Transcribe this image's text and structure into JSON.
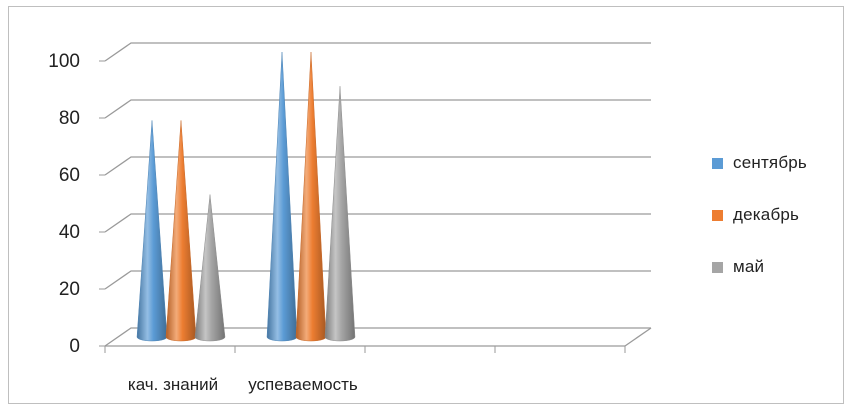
{
  "chart_data": {
    "type": "bar",
    "subtype": "3d-cone",
    "title": "",
    "xlabel": "",
    "ylabel": "",
    "ylim": [
      0,
      100
    ],
    "yticks": [
      0,
      20,
      40,
      60,
      80,
      100
    ],
    "grid": true,
    "legend_position": "right",
    "categories": [
      "кач. знаний",
      "успеваемость"
    ],
    "series": [
      {
        "name": "сентябрь",
        "color": "#5b9bd5",
        "values": [
          76,
          100
        ]
      },
      {
        "name": "декабрь",
        "color": "#ed7d31",
        "values": [
          76,
          100
        ]
      },
      {
        "name": "май",
        "color": "#a5a5a5",
        "values": [
          50,
          88
        ]
      }
    ]
  }
}
